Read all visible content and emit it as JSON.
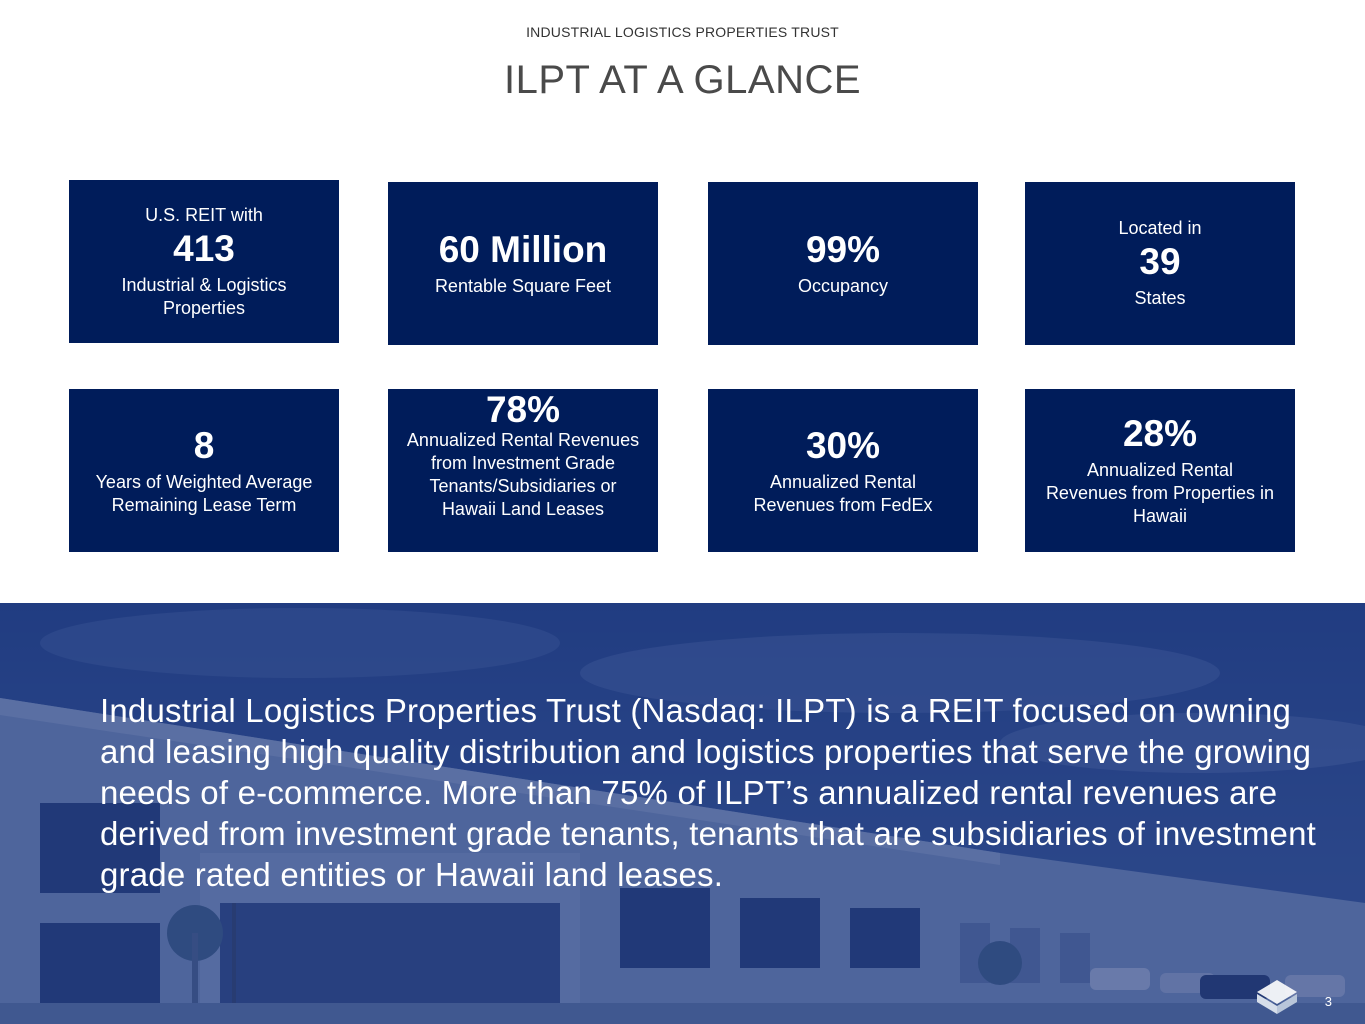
{
  "header": {
    "kicker": "INDUSTRIAL LOGISTICS PROPERTIES TRUST",
    "title": "ILPT AT A GLANCE"
  },
  "tiles": [
    {
      "pre": "U.S. REIT with",
      "big": "413",
      "desc": "Industrial & Logistics Properties"
    },
    {
      "pre": "",
      "big": "60 Million",
      "desc": "Rentable Square Feet"
    },
    {
      "pre": "",
      "big": "99%",
      "desc": "Occupancy"
    },
    {
      "pre": "Located in",
      "big": "39",
      "desc": "States"
    },
    {
      "pre": "",
      "big": "8",
      "desc": "Years of Weighted Average Remaining Lease Term"
    },
    {
      "pre": "",
      "big": "78%",
      "desc": "Annualized Rental Revenues from Investment Grade Tenants/Subsidiaries or Hawaii Land Leases"
    },
    {
      "pre": "",
      "big": "30%",
      "desc": "Annualized Rental Revenues from FedEx"
    },
    {
      "pre": "",
      "big": "28%",
      "desc": "Annualized Rental Revenues from Properties in Hawaii"
    }
  ],
  "summary": "Industrial Logistics Properties Trust (Nasdaq: ILPT) is a REIT focused on owning and leasing high quality distribution and logistics properties that serve the growing needs of e-commerce.  More than 75% of ILPT’s annualized rental revenues are derived from investment grade tenants, tenants that are subsidiaries of investment grade rated entities or Hawaii land leases.",
  "footer": {
    "page_number": "3"
  },
  "colors": {
    "tile_bg": "#001c5a",
    "overlay": "#1a3278"
  }
}
